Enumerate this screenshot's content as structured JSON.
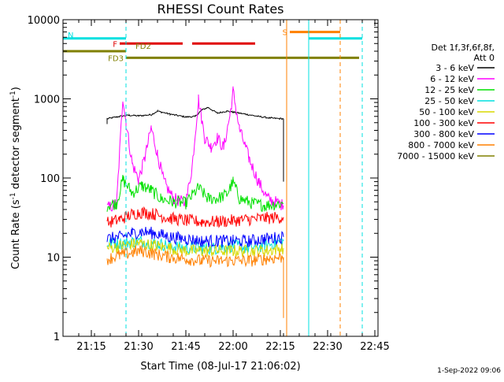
{
  "chart_data": {
    "type": "line",
    "title": "RHESSI Count Rates",
    "xlabel": "Start Time (08-Jul-17 21:06:02)",
    "ylabel": "Count Rate (s⁻¹ detector segment⁻¹)",
    "ylabel_main": "Count Rate (s",
    "ylabel_sup1": "-1",
    "ylabel_mid": " detector segment",
    "ylabel_sup2": "-1",
    "ylabel_end": ")",
    "y_scale": "log",
    "ylim": [
      1,
      10000
    ],
    "xlim": [
      "21:06",
      "22:46"
    ],
    "x_tick_labels": [
      "21:15",
      "21:30",
      "21:45",
      "22:00",
      "22:15",
      "22:30",
      "22:45"
    ],
    "y_tick_labels": [
      "1",
      "10",
      "100",
      "1000",
      "10000"
    ],
    "legend_title_1": "Det 1f,3f,6f,8f,",
    "legend_title_2": "Att 0",
    "legend_placement": "right",
    "series": [
      {
        "name": "3 - 6 keV",
        "color": "#000000",
        "points": [
          [
            "21:20",
            480
          ],
          [
            "21:20",
            560
          ],
          [
            "21:24",
            600
          ],
          [
            "21:27",
            620
          ],
          [
            "21:30",
            610
          ],
          [
            "21:34",
            630
          ],
          [
            "21:36",
            700
          ],
          [
            "21:40",
            640
          ],
          [
            "21:45",
            590
          ],
          [
            "21:48",
            600
          ],
          [
            "21:50",
            720
          ],
          [
            "21:52",
            780
          ],
          [
            "21:55",
            660
          ],
          [
            "21:58",
            700
          ],
          [
            "22:00",
            680
          ],
          [
            "22:04",
            640
          ],
          [
            "22:08",
            600
          ],
          [
            "22:12",
            570
          ],
          [
            "22:16",
            560
          ],
          [
            "22:16",
            90
          ]
        ]
      },
      {
        "name": "6 - 12 keV",
        "color": "#ff00ff",
        "points": [
          [
            "21:20",
            42
          ],
          [
            "21:23",
            46
          ],
          [
            "21:25",
            1050
          ],
          [
            "21:26",
            500
          ],
          [
            "21:28",
            150
          ],
          [
            "21:30",
            95
          ],
          [
            "21:32",
            180
          ],
          [
            "21:34",
            430
          ],
          [
            "21:36",
            200
          ],
          [
            "21:38",
            90
          ],
          [
            "21:41",
            55
          ],
          [
            "21:45",
            48
          ],
          [
            "21:47",
            140
          ],
          [
            "21:49",
            1000
          ],
          [
            "21:51",
            320
          ],
          [
            "21:53",
            250
          ],
          [
            "21:55",
            320
          ],
          [
            "21:57",
            240
          ],
          [
            "21:59",
            620
          ],
          [
            "22:00",
            1250
          ],
          [
            "22:02",
            420
          ],
          [
            "22:05",
            180
          ],
          [
            "22:08",
            90
          ],
          [
            "22:11",
            55
          ],
          [
            "22:16",
            45
          ]
        ]
      },
      {
        "name": "12 - 25 keV",
        "color": "#00e000",
        "points": [
          [
            "21:20",
            45
          ],
          [
            "21:23",
            48
          ],
          [
            "21:25",
            95
          ],
          [
            "21:28",
            65
          ],
          [
            "21:31",
            80
          ],
          [
            "21:34",
            70
          ],
          [
            "21:37",
            55
          ],
          [
            "21:41",
            50
          ],
          [
            "21:45",
            48
          ],
          [
            "21:49",
            75
          ],
          [
            "21:52",
            55
          ],
          [
            "21:55",
            55
          ],
          [
            "21:58",
            62
          ],
          [
            "22:00",
            90
          ],
          [
            "22:02",
            55
          ],
          [
            "22:06",
            48
          ],
          [
            "22:10",
            45
          ],
          [
            "22:16",
            48
          ]
        ]
      },
      {
        "name": "25 - 50 keV",
        "color": "#00e0e0",
        "points": [
          [
            "21:20",
            15
          ],
          [
            "21:25",
            15
          ],
          [
            "21:30",
            16
          ],
          [
            "21:35",
            15
          ],
          [
            "21:40",
            14
          ],
          [
            "21:45",
            13
          ],
          [
            "21:50",
            13
          ],
          [
            "21:55",
            13
          ],
          [
            "22:00",
            14
          ],
          [
            "22:05",
            13
          ],
          [
            "22:10",
            14
          ],
          [
            "22:16",
            16
          ]
        ]
      },
      {
        "name": "50 - 100 keV",
        "color": "#d8d800",
        "points": [
          [
            "21:20",
            13
          ],
          [
            "21:25",
            14
          ],
          [
            "21:30",
            15
          ],
          [
            "21:35",
            14
          ],
          [
            "21:40",
            13
          ],
          [
            "21:45",
            12
          ],
          [
            "21:50",
            12
          ],
          [
            "21:55",
            12
          ],
          [
            "22:00",
            12
          ],
          [
            "22:05",
            12
          ],
          [
            "22:10",
            12
          ],
          [
            "22:16",
            13
          ]
        ]
      },
      {
        "name": "100 - 300 keV",
        "color": "#ff0000",
        "points": [
          [
            "21:20",
            27
          ],
          [
            "21:24",
            30
          ],
          [
            "21:28",
            35
          ],
          [
            "21:31",
            37
          ],
          [
            "21:35",
            35
          ],
          [
            "21:40",
            31
          ],
          [
            "21:45",
            29
          ],
          [
            "21:50",
            28
          ],
          [
            "21:55",
            28
          ],
          [
            "22:00",
            29
          ],
          [
            "22:05",
            30
          ],
          [
            "22:10",
            31
          ],
          [
            "22:16",
            32
          ]
        ]
      },
      {
        "name": "300 - 800 keV",
        "color": "#0000ff",
        "points": [
          [
            "21:20",
            17
          ],
          [
            "21:24",
            18
          ],
          [
            "21:28",
            20
          ],
          [
            "21:31",
            21
          ],
          [
            "21:35",
            20
          ],
          [
            "21:40",
            18
          ],
          [
            "21:45",
            17
          ],
          [
            "21:50",
            16
          ],
          [
            "21:55",
            16
          ],
          [
            "22:00",
            16
          ],
          [
            "22:05",
            16
          ],
          [
            "22:10",
            17
          ],
          [
            "22:16",
            18
          ]
        ]
      },
      {
        "name": "800 - 7000 keV",
        "color": "#ff8000",
        "points": [
          [
            "21:20",
            9.5
          ],
          [
            "21:24",
            10.5
          ],
          [
            "21:28",
            11.5
          ],
          [
            "21:31",
            12
          ],
          [
            "21:35",
            11
          ],
          [
            "21:40",
            10
          ],
          [
            "21:45",
            9.5
          ],
          [
            "21:50",
            9
          ],
          [
            "21:55",
            9
          ],
          [
            "22:00",
            9
          ],
          [
            "22:05",
            9
          ],
          [
            "22:10",
            9.5
          ],
          [
            "22:16",
            10
          ],
          [
            "22:16",
            1.7
          ]
        ]
      },
      {
        "name": "7000 - 15000 keV",
        "color": "#808000",
        "points": []
      }
    ],
    "flags": [
      {
        "label": "N",
        "color": "#00e0e0",
        "y": 5800,
        "start": "21:06",
        "end": "21:26"
      },
      {
        "label": "F",
        "color": "#e00000",
        "y": 5000,
        "start": "21:24",
        "end": "21:44"
      },
      {
        "label": "",
        "color": "#e00000",
        "y": 5000,
        "start": "21:47",
        "end": "22:07"
      },
      {
        "label": "FD2",
        "color": "#808000",
        "y": 4000,
        "start": "21:06",
        "end": "21:26"
      },
      {
        "label": "FD3",
        "color": "#808000",
        "y": 3300,
        "start": "21:26",
        "end": "22:40"
      },
      {
        "label": "S",
        "color": "#ff8000",
        "y": 7000,
        "start": "22:18",
        "end": "22:34"
      },
      {
        "label": "",
        "color": "#00e0e0",
        "y": 5800,
        "start": "22:24",
        "end": "22:41"
      }
    ],
    "vlines": [
      {
        "t": "21:06",
        "color": "#00e0e0",
        "style": "solid"
      },
      {
        "t": "21:26",
        "color": "#00e0e0",
        "style": "dashed"
      },
      {
        "t": "22:17",
        "color": "#ff8000",
        "style": "solid"
      },
      {
        "t": "22:24",
        "color": "#00e0e0",
        "style": "solid"
      },
      {
        "t": "22:34",
        "color": "#ff8000",
        "style": "dashed"
      },
      {
        "t": "22:41",
        "color": "#00e0e0",
        "style": "dashed"
      }
    ]
  },
  "footer_stamp": "1-Sep-2022 09:06"
}
